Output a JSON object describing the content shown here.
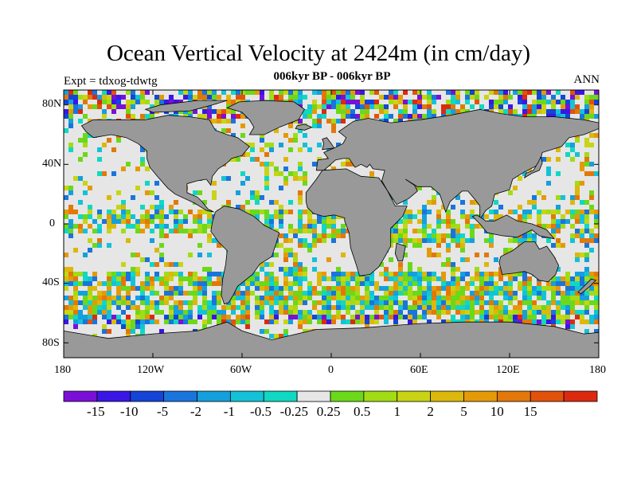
{
  "title": "Ocean Vertical Velocity at 2424m (in cm/day)",
  "subtitle": "006kyr BP - 006kyr BP",
  "left_label": "Expt = tdxog-tdwtg",
  "right_label": "ANN",
  "axes": {
    "lat_ticks": [
      "80N",
      "40N",
      "0",
      "40S",
      "80S"
    ],
    "lon_ticks": [
      "180",
      "120W",
      "60W",
      "0",
      "60E",
      "120E",
      "180"
    ]
  },
  "colors": {
    "land": "#999999",
    "coast": "#000000",
    "near_zero": "#e6e6e6"
  },
  "colorbar": {
    "colors": [
      "#7a10d8",
      "#3a16e6",
      "#1444d8",
      "#1a74dc",
      "#14a0dc",
      "#14c2d8",
      "#10d8c2",
      "#e6e6e6",
      "#6cd81a",
      "#a2dc14",
      "#c8d414",
      "#dcb80c",
      "#e49a08",
      "#e2780a",
      "#e2520c",
      "#dc2a10"
    ],
    "labels": [
      "-15",
      "-10",
      "-5",
      "-2",
      "-1",
      "-0.5",
      "-0.25",
      "0.25",
      "0.5",
      "1",
      "2",
      "5",
      "10",
      "15"
    ]
  }
}
